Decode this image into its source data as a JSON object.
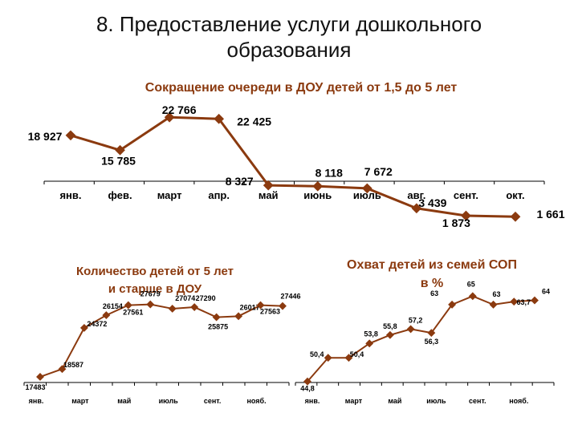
{
  "slide": {
    "title_line1": "8. Предоставление услуги дошкольного",
    "title_line2": "образования"
  },
  "colors": {
    "line": "#8B3A0F",
    "chart_title": "#8B3A0F",
    "text": "#000000"
  },
  "chart_data": [
    {
      "type": "line",
      "title": "Сокращение очереди в ДОУ детей от 1,5 до 5 лет",
      "categories": [
        "янв.",
        "фев.",
        "март",
        "апр.",
        "май",
        "июнь",
        "июль",
        "авг.",
        "сент.",
        "окт."
      ],
      "values": [
        18927,
        15785,
        22766,
        22425,
        8327,
        8118,
        7672,
        3439,
        1873,
        1661
      ],
      "data_labels": [
        "18 927",
        "15 785",
        "22 766",
        "22 425",
        "8 327",
        "8 118",
        "7 672",
        "3 439",
        "1 873",
        "1 661"
      ],
      "ylim": [
        0,
        24000
      ],
      "grid": false,
      "legend": "none"
    },
    {
      "type": "line",
      "title_lines": [
        "Количество детей от 5 лет",
        "и старше в ДОУ"
      ],
      "categories": [
        "янв.",
        "",
        "март",
        "",
        "май",
        "",
        "июль",
        "",
        "сент.",
        "",
        "нояб.",
        ""
      ],
      "values": [
        17483,
        18587,
        24372,
        26154,
        27561,
        27679,
        27074,
        27290,
        25875,
        26017,
        27563,
        27446
      ],
      "data_labels": [
        "17483",
        "18587",
        "24372",
        "26154",
        "27561",
        "27679",
        "27074",
        "27290",
        "25875",
        "26017",
        "27563",
        "27446"
      ],
      "ylim": [
        15000,
        30000
      ],
      "grid": false,
      "legend": "none"
    },
    {
      "type": "line",
      "title_lines": [
        "Охват детей из семей СОП",
        "в %"
      ],
      "categories": [
        "янв.",
        "",
        "март",
        "",
        "май",
        "",
        "июль",
        "",
        "сент.",
        "",
        "нояб.",
        ""
      ],
      "values": [
        44.8,
        50.4,
        50.4,
        53.8,
        55.8,
        57.2,
        56.3,
        63,
        65,
        63,
        63.7,
        64
      ],
      "data_labels": [
        "44,8",
        "50,4",
        "50,4",
        "53,8",
        "55,8",
        "57,2",
        "56,3",
        "63",
        "65",
        "63",
        "63,7",
        "64"
      ],
      "ylim": [
        40,
        70
      ],
      "grid": false,
      "legend": "none"
    }
  ]
}
